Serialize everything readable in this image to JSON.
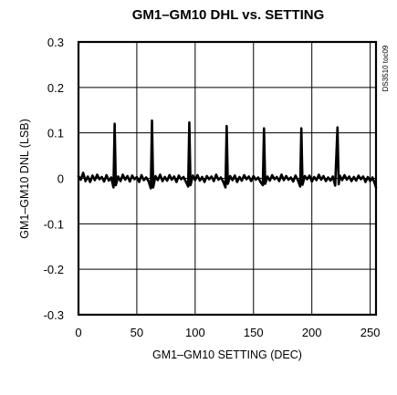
{
  "chart_data": {
    "type": "line",
    "title": "GM1–GM10 DHL vs. SETTING",
    "xlabel": "GM1–GM10 SETTING (DEC)",
    "ylabel": "GM1–GM10 DNL (LSB)",
    "figure_code": "DS3510 toc09",
    "xlim": [
      0,
      255
    ],
    "ylim": [
      -0.3,
      0.3
    ],
    "x_ticks": [
      "0",
      "50",
      "100",
      "150",
      "200",
      "250"
    ],
    "y_ticks": [
      "0.3",
      "0.2",
      "0.1",
      "0",
      "-0.1",
      "-0.2",
      "-0.3"
    ],
    "grid": true,
    "series": [
      {
        "color": "#000000",
        "x": [
          0,
          2,
          4,
          6,
          8,
          10,
          12,
          14,
          16,
          18,
          20,
          22,
          24,
          26,
          28,
          30,
          31,
          32,
          34,
          36,
          38,
          40,
          42,
          44,
          46,
          48,
          50,
          52,
          54,
          56,
          58,
          60,
          62,
          63,
          64,
          66,
          68,
          70,
          72,
          74,
          76,
          78,
          80,
          82,
          84,
          86,
          88,
          90,
          92,
          94,
          95,
          96,
          98,
          100,
          102,
          104,
          106,
          108,
          110,
          112,
          114,
          116,
          118,
          120,
          122,
          124,
          126,
          127,
          128,
          130,
          132,
          134,
          136,
          138,
          140,
          142,
          144,
          146,
          148,
          150,
          152,
          154,
          156,
          158,
          159,
          160,
          162,
          164,
          166,
          168,
          170,
          172,
          174,
          176,
          178,
          180,
          182,
          184,
          186,
          188,
          190,
          191,
          192,
          194,
          196,
          198,
          200,
          202,
          204,
          206,
          208,
          210,
          212,
          214,
          216,
          218,
          220,
          222,
          223,
          224,
          226,
          228,
          230,
          232,
          234,
          236,
          238,
          240,
          242,
          244,
          246,
          248,
          250,
          252,
          254,
          255
        ],
        "y": [
          0.005,
          -0.003,
          0.012,
          -0.006,
          0.004,
          -0.008,
          0.006,
          -0.004,
          0.008,
          -0.002,
          0.003,
          -0.007,
          0.007,
          -0.005,
          0.002,
          -0.02,
          0.12,
          -0.015,
          0.004,
          -0.006,
          0.008,
          -0.003,
          0.005,
          -0.007,
          0.006,
          -0.002,
          0.003,
          -0.008,
          0.007,
          -0.004,
          0.002,
          -0.006,
          -0.022,
          0.127,
          -0.02,
          0.005,
          -0.004,
          0.008,
          -0.006,
          0.003,
          -0.005,
          0.007,
          -0.003,
          0.004,
          -0.008,
          0.006,
          -0.002,
          0.003,
          -0.007,
          -0.018,
          0.123,
          -0.015,
          0.006,
          -0.004,
          0.007,
          -0.005,
          0.003,
          -0.008,
          0.005,
          -0.002,
          0.004,
          -0.006,
          0.008,
          -0.003,
          0.002,
          -0.007,
          -0.02,
          0.115,
          -0.012,
          0.005,
          -0.004,
          0.006,
          -0.008,
          0.003,
          -0.005,
          0.007,
          -0.002,
          0.004,
          -0.006,
          0.005,
          -0.003,
          0.002,
          -0.008,
          -0.015,
          0.11,
          -0.012,
          0.004,
          -0.005,
          0.007,
          -0.002,
          0.003,
          -0.006,
          0.008,
          -0.004,
          0.005,
          -0.003,
          0.002,
          -0.007,
          0.006,
          -0.004,
          -0.018,
          0.11,
          -0.014,
          0.005,
          -0.002,
          0.006,
          -0.007,
          0.003,
          -0.004,
          0.008,
          -0.003,
          0.005,
          -0.006,
          0.002,
          -0.005,
          0.004,
          -0.016,
          0.112,
          -0.013,
          0.006,
          -0.004,
          0.007,
          -0.003,
          0.004,
          -0.006,
          0.003,
          -0.005,
          0.006,
          -0.002,
          0.004,
          -0.008,
          0.003,
          -0.006,
          0.002,
          -0.012,
          -0.02
        ]
      }
    ]
  }
}
